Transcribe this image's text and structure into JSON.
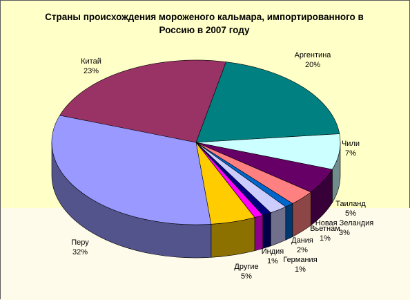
{
  "chart_data": {
    "type": "pie",
    "title": "Страны происхождения мороженого кальмара, импортированного в Россию в 2007 году",
    "title_lines": [
      "Страны происхождения мороженого кальмара, импортированного в",
      "Россию в 2007 году"
    ],
    "three_d": true,
    "legend": "none",
    "slices": [
      {
        "label": "Аргентина",
        "value": 20,
        "pct": "20%",
        "color": "#008080"
      },
      {
        "label": "Чили",
        "value": 7,
        "pct": "7%",
        "color": "#ccffff"
      },
      {
        "label": "Таиланд",
        "value": 5,
        "pct": "5%",
        "color": "#660066"
      },
      {
        "label": "Новая Зеландия",
        "value": 3,
        "pct": "3%",
        "color": "#ff8080"
      },
      {
        "label": "Вьетнам",
        "value": 1,
        "pct": "1%",
        "color": "#0066cc"
      },
      {
        "label": "Дания",
        "value": 2,
        "pct": "2%",
        "color": "#ccccff"
      },
      {
        "label": "Германия",
        "value": 1,
        "pct": "1%",
        "color": "#000080"
      },
      {
        "label": "Индия",
        "value": 1,
        "pct": "1%",
        "color": "#ff00ff"
      },
      {
        "label": "Другие",
        "value": 5,
        "pct": "5%",
        "color": "#ffcc00"
      },
      {
        "label": "Перу",
        "value": 32,
        "pct": "32%",
        "color": "#9999ff"
      },
      {
        "label": "Китай",
        "value": 23,
        "pct": "23%",
        "color": "#993366"
      }
    ]
  }
}
